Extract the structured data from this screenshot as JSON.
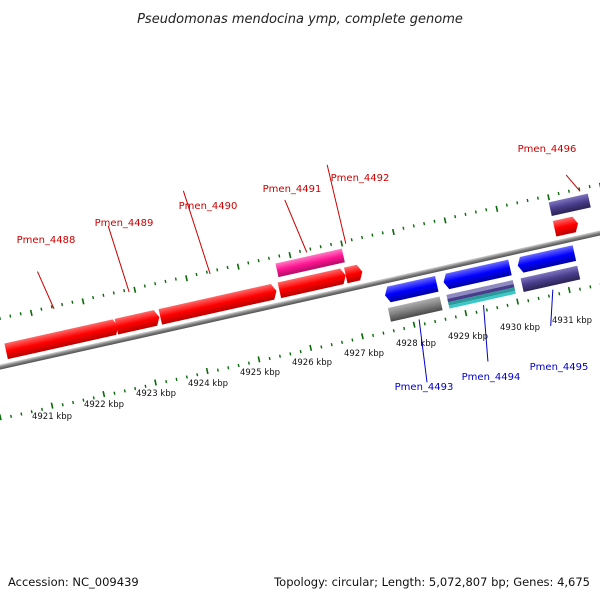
{
  "title": "Pseudomonas mendocina ymp, complete genome",
  "footer": {
    "accession": "Accession: NC_009439",
    "summary": "Topology: circular; Length: 5,072,807 bp; Genes: 4,675"
  },
  "colors": {
    "forward_gene": "#ff0000",
    "reverse_gene": "#0000ff",
    "rna_gene": "#ff1493",
    "gray_feature": "#7f7f7f",
    "purple_feature": "#483d8b",
    "cyan_feature": "#3cc8c8",
    "forward_label": "#cc0000",
    "reverse_label": "#0000cc",
    "tick": "#0a6a0a",
    "backbone": "#808080"
  },
  "scale": {
    "tick_labels": [
      "4921 kbp",
      "4922 kbp",
      "4923 kbp",
      "4924 kbp",
      "4925 kbp",
      "4926 kbp",
      "4927 kbp",
      "4928 kbp",
      "4929 kbp",
      "4930 kbp",
      "4931 kbp"
    ]
  },
  "forward_gene_labels": [
    "Pmen_4488",
    "Pmen_4489",
    "Pmen_4490",
    "Pmen_4491",
    "Pmen_4492",
    "Pmen_4496"
  ],
  "reverse_gene_labels": [
    "Pmen_4493",
    "Pmen_4494",
    "Pmen_4495"
  ]
}
